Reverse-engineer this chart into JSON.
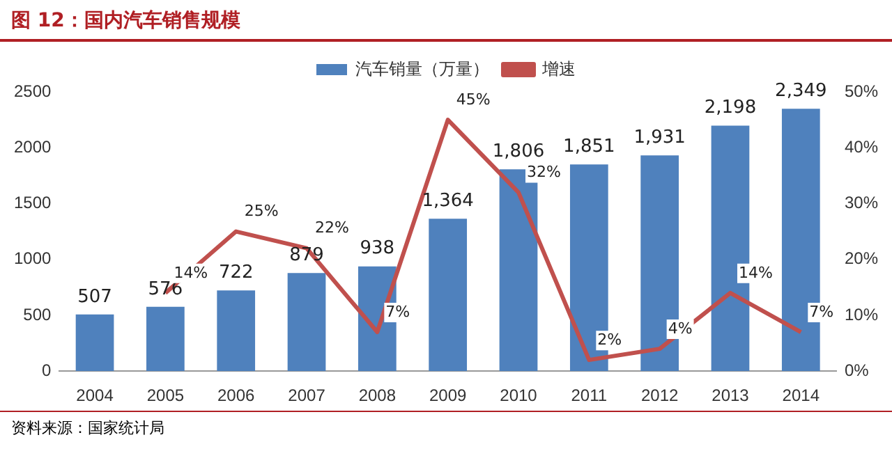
{
  "chart_data": {
    "type": "bar",
    "title": "图 12：国内汽车销售规模",
    "annotations": [
      "资料来源：国家统计局"
    ],
    "categories": [
      "2004",
      "2005",
      "2006",
      "2007",
      "2008",
      "2009",
      "2010",
      "2011",
      "2012",
      "2013",
      "2014"
    ],
    "series": [
      {
        "name": "汽车销量（万量）",
        "color": "#4f81bd",
        "values": [
          507,
          576,
          722,
          879,
          938,
          1364,
          1806,
          1851,
          1931,
          2198,
          2349
        ],
        "value_labels": [
          "507",
          "576",
          "722",
          "879",
          "938",
          "1,364",
          "1,806",
          "1,851",
          "1,931",
          "2,198",
          "2,349"
        ]
      },
      {
        "name": "增速",
        "type": "line",
        "axis": "y2",
        "color": "#c0504d",
        "values": [
          null,
          14,
          25,
          22,
          7,
          45,
          32,
          2,
          4,
          14,
          7
        ],
        "value_labels": [
          null,
          "14%",
          "25%",
          "22%",
          "7%",
          "45%",
          "32%",
          "2%",
          "4%",
          "14%",
          "7%"
        ]
      }
    ],
    "ylim": [
      0,
      2500
    ],
    "yticks": [
      0,
      500,
      1000,
      1500,
      2000,
      2500
    ],
    "y2lim": [
      0,
      50
    ],
    "y2ticks": [
      {
        "value": 0,
        "label": "0%"
      },
      {
        "value": 10,
        "label": "10%"
      },
      {
        "value": 20,
        "label": "20%"
      },
      {
        "value": 30,
        "label": "30%"
      },
      {
        "value": 40,
        "label": "40%"
      },
      {
        "value": 50,
        "label": "50%"
      }
    ],
    "legend": "top",
    "grid": false,
    "marker": "none",
    "line_style": "solid"
  }
}
